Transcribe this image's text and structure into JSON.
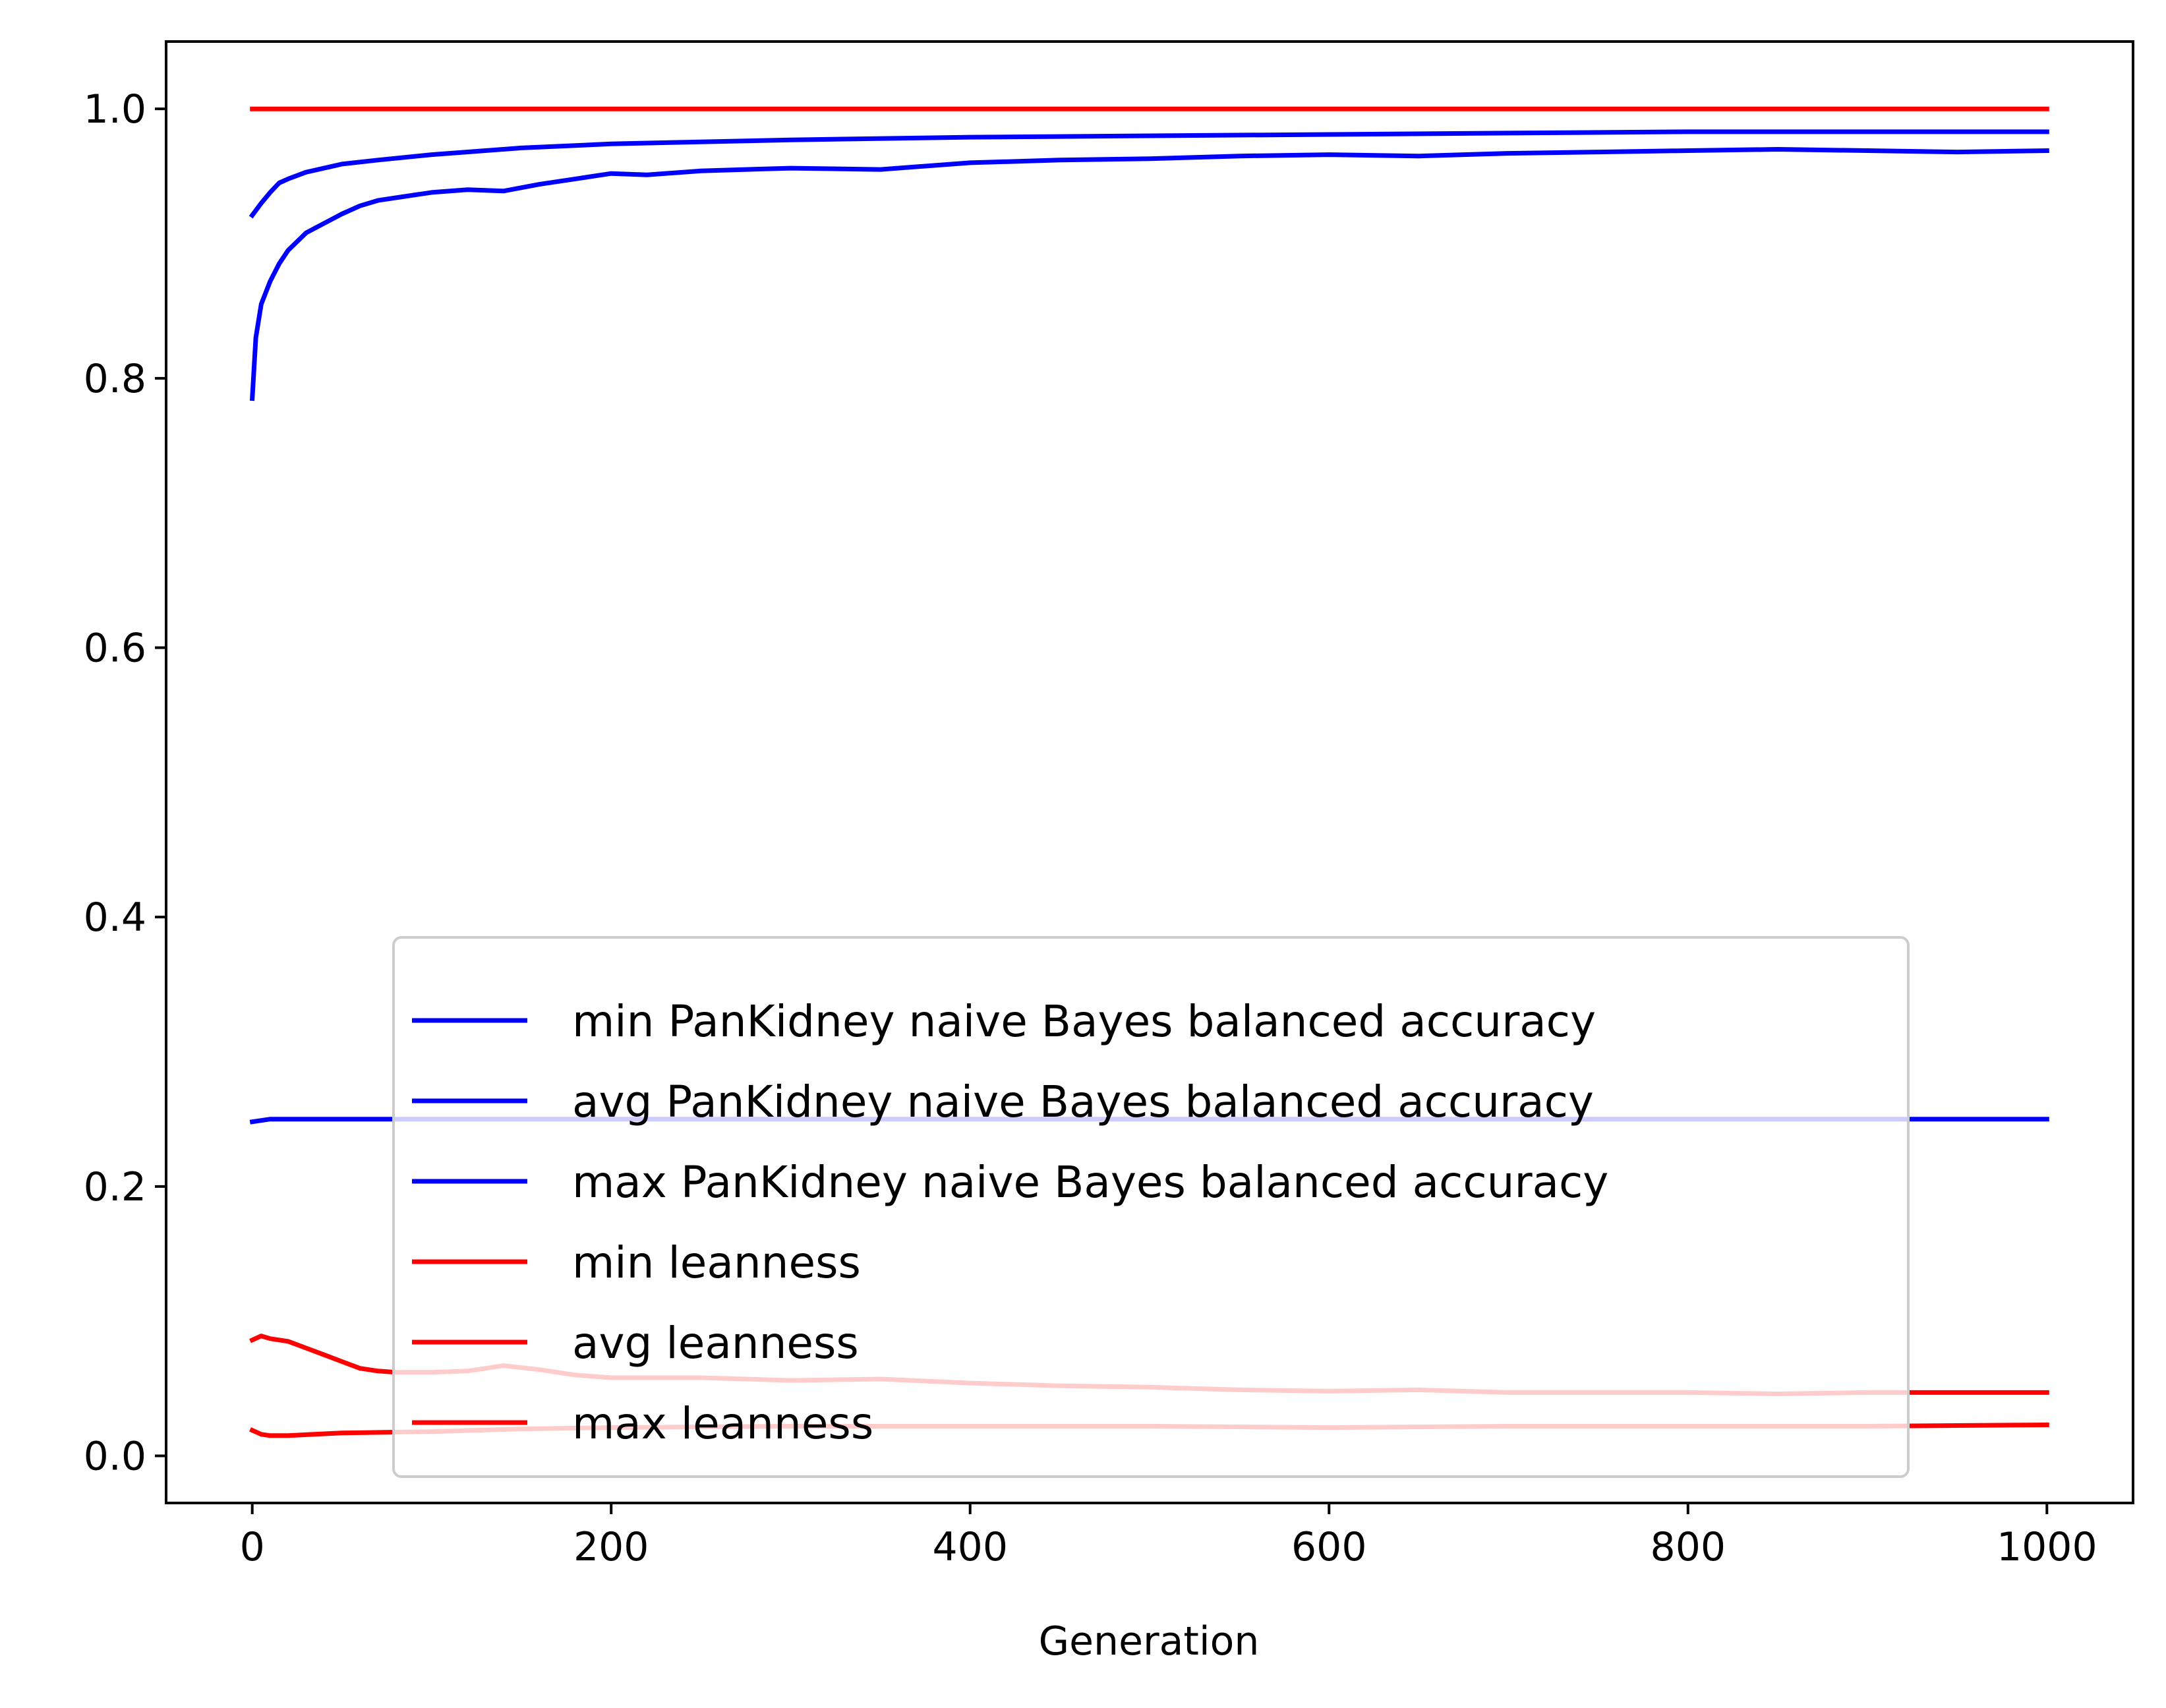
{
  "chart_data": {
    "type": "line",
    "title": "",
    "xlabel": "Generation",
    "ylabel": "",
    "xlim": [
      -48,
      1048
    ],
    "ylim": [
      -0.035,
      1.05
    ],
    "grid": false,
    "legend_placement": "lower-right",
    "xticks": [
      0,
      200,
      400,
      600,
      800,
      1000
    ],
    "xtick_labels": [
      "0",
      "200",
      "400",
      "600",
      "800",
      "1000"
    ],
    "yticks": [
      0.0,
      0.2,
      0.4,
      0.6,
      0.8,
      1.0
    ],
    "ytick_labels": [
      "0.0",
      "0.2",
      "0.4",
      "0.6",
      "0.8",
      "1.0"
    ],
    "series": [
      {
        "name": "min PanKidney naive Bayes balanced accuracy",
        "color": "#0000ff",
        "x": [
          0,
          10,
          20,
          50,
          100,
          200,
          400,
          600,
          800,
          1000
        ],
        "y": [
          0.248,
          0.25,
          0.25,
          0.25,
          0.25,
          0.25,
          0.25,
          0.25,
          0.25,
          0.25
        ]
      },
      {
        "name": "avg PanKidney naive Bayes balanced accuracy",
        "color": "#0000ff",
        "x": [
          0,
          2,
          5,
          10,
          15,
          20,
          30,
          40,
          50,
          60,
          70,
          80,
          100,
          120,
          140,
          160,
          180,
          200,
          220,
          250,
          300,
          350,
          400,
          450,
          500,
          550,
          600,
          650,
          700,
          750,
          800,
          850,
          900,
          950,
          1000
        ],
        "y": [
          0.785,
          0.83,
          0.855,
          0.872,
          0.885,
          0.895,
          0.908,
          0.915,
          0.922,
          0.928,
          0.932,
          0.934,
          0.938,
          0.94,
          0.939,
          0.944,
          0.948,
          0.952,
          0.951,
          0.954,
          0.956,
          0.955,
          0.96,
          0.962,
          0.963,
          0.965,
          0.966,
          0.965,
          0.967,
          0.968,
          0.969,
          0.97,
          0.969,
          0.968,
          0.969
        ]
      },
      {
        "name": "max PanKidney naive Bayes balanced accuracy",
        "color": "#0000ff",
        "x": [
          0,
          5,
          10,
          15,
          20,
          30,
          40,
          50,
          70,
          100,
          150,
          200,
          300,
          400,
          500,
          600,
          700,
          800,
          900,
          1000
        ],
        "y": [
          0.921,
          0.93,
          0.938,
          0.945,
          0.948,
          0.953,
          0.956,
          0.959,
          0.962,
          0.966,
          0.971,
          0.974,
          0.977,
          0.979,
          0.98,
          0.981,
          0.982,
          0.983,
          0.983,
          0.983
        ]
      },
      {
        "name": "min leanness",
        "color": "#ff0000",
        "x": [
          0,
          5,
          10,
          20,
          50,
          100,
          150,
          200,
          300,
          400,
          500,
          600,
          700,
          800,
          900,
          1000
        ],
        "y": [
          0.019,
          0.016,
          0.015,
          0.015,
          0.017,
          0.018,
          0.02,
          0.021,
          0.022,
          0.022,
          0.022,
          0.021,
          0.022,
          0.022,
          0.022,
          0.023
        ]
      },
      {
        "name": "avg leanness",
        "color": "#ff0000",
        "x": [
          0,
          5,
          10,
          20,
          30,
          40,
          50,
          60,
          70,
          80,
          100,
          120,
          140,
          160,
          180,
          200,
          250,
          300,
          350,
          400,
          450,
          500,
          550,
          600,
          650,
          700,
          750,
          800,
          850,
          900,
          950,
          1000
        ],
        "y": [
          0.086,
          0.089,
          0.087,
          0.085,
          0.08,
          0.075,
          0.07,
          0.065,
          0.063,
          0.062,
          0.062,
          0.063,
          0.067,
          0.064,
          0.06,
          0.058,
          0.058,
          0.056,
          0.057,
          0.054,
          0.052,
          0.051,
          0.049,
          0.048,
          0.049,
          0.047,
          0.047,
          0.047,
          0.046,
          0.047,
          0.047,
          0.047
        ]
      },
      {
        "name": "max leanness",
        "color": "#ff0000",
        "x": [
          0,
          1000
        ],
        "y": [
          1.0,
          1.0
        ]
      }
    ]
  }
}
